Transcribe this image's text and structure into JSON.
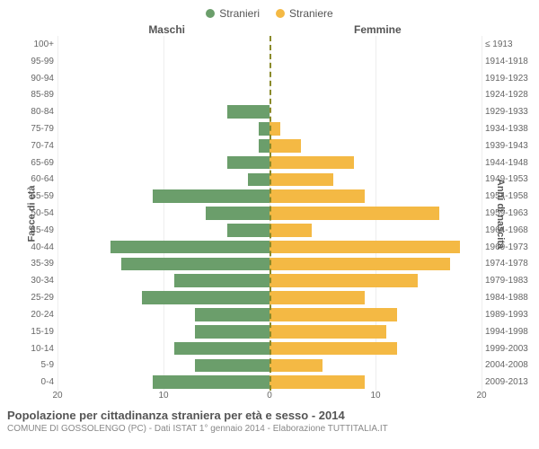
{
  "legend": {
    "male": "Stranieri",
    "female": "Straniere"
  },
  "headers": {
    "male": "Maschi",
    "female": "Femmine"
  },
  "axis_labels": {
    "left": "Fasce di età",
    "right": "Anni di nascita"
  },
  "colors": {
    "male": "#6b9e6b",
    "female": "#f4b944",
    "centerline": "#8a8a2a",
    "grid": "#eeeeee",
    "background": "#ffffff",
    "text": "#555555",
    "subtext": "#888888"
  },
  "xaxis": {
    "max": 20,
    "ticks": [
      20,
      10,
      0,
      10,
      20
    ]
  },
  "rows": [
    {
      "age": "100+",
      "year": "≤ 1913",
      "m": 0,
      "f": 0
    },
    {
      "age": "95-99",
      "year": "1914-1918",
      "m": 0,
      "f": 0
    },
    {
      "age": "90-94",
      "year": "1919-1923",
      "m": 0,
      "f": 0
    },
    {
      "age": "85-89",
      "year": "1924-1928",
      "m": 0,
      "f": 0
    },
    {
      "age": "80-84",
      "year": "1929-1933",
      "m": 4,
      "f": 0
    },
    {
      "age": "75-79",
      "year": "1934-1938",
      "m": 1,
      "f": 1
    },
    {
      "age": "70-74",
      "year": "1939-1943",
      "m": 1,
      "f": 3
    },
    {
      "age": "65-69",
      "year": "1944-1948",
      "m": 4,
      "f": 8
    },
    {
      "age": "60-64",
      "year": "1949-1953",
      "m": 2,
      "f": 6
    },
    {
      "age": "55-59",
      "year": "1954-1958",
      "m": 11,
      "f": 9
    },
    {
      "age": "50-54",
      "year": "1959-1963",
      "m": 6,
      "f": 16
    },
    {
      "age": "45-49",
      "year": "1964-1968",
      "m": 4,
      "f": 4
    },
    {
      "age": "40-44",
      "year": "1969-1973",
      "m": 15,
      "f": 18
    },
    {
      "age": "35-39",
      "year": "1974-1978",
      "m": 14,
      "f": 17
    },
    {
      "age": "30-34",
      "year": "1979-1983",
      "m": 9,
      "f": 14
    },
    {
      "age": "25-29",
      "year": "1984-1988",
      "m": 12,
      "f": 9
    },
    {
      "age": "20-24",
      "year": "1989-1993",
      "m": 7,
      "f": 12
    },
    {
      "age": "15-19",
      "year": "1994-1998",
      "m": 7,
      "f": 11
    },
    {
      "age": "10-14",
      "year": "1999-2003",
      "m": 9,
      "f": 12
    },
    {
      "age": "5-9",
      "year": "2004-2008",
      "m": 7,
      "f": 5
    },
    {
      "age": "0-4",
      "year": "2009-2013",
      "m": 11,
      "f": 9
    }
  ],
  "footer": {
    "title": "Popolazione per cittadinanza straniera per età e sesso - 2014",
    "sub": "COMUNE DI GOSSOLENGO (PC) - Dati ISTAT 1° gennaio 2014 - Elaborazione TUTTITALIA.IT"
  }
}
